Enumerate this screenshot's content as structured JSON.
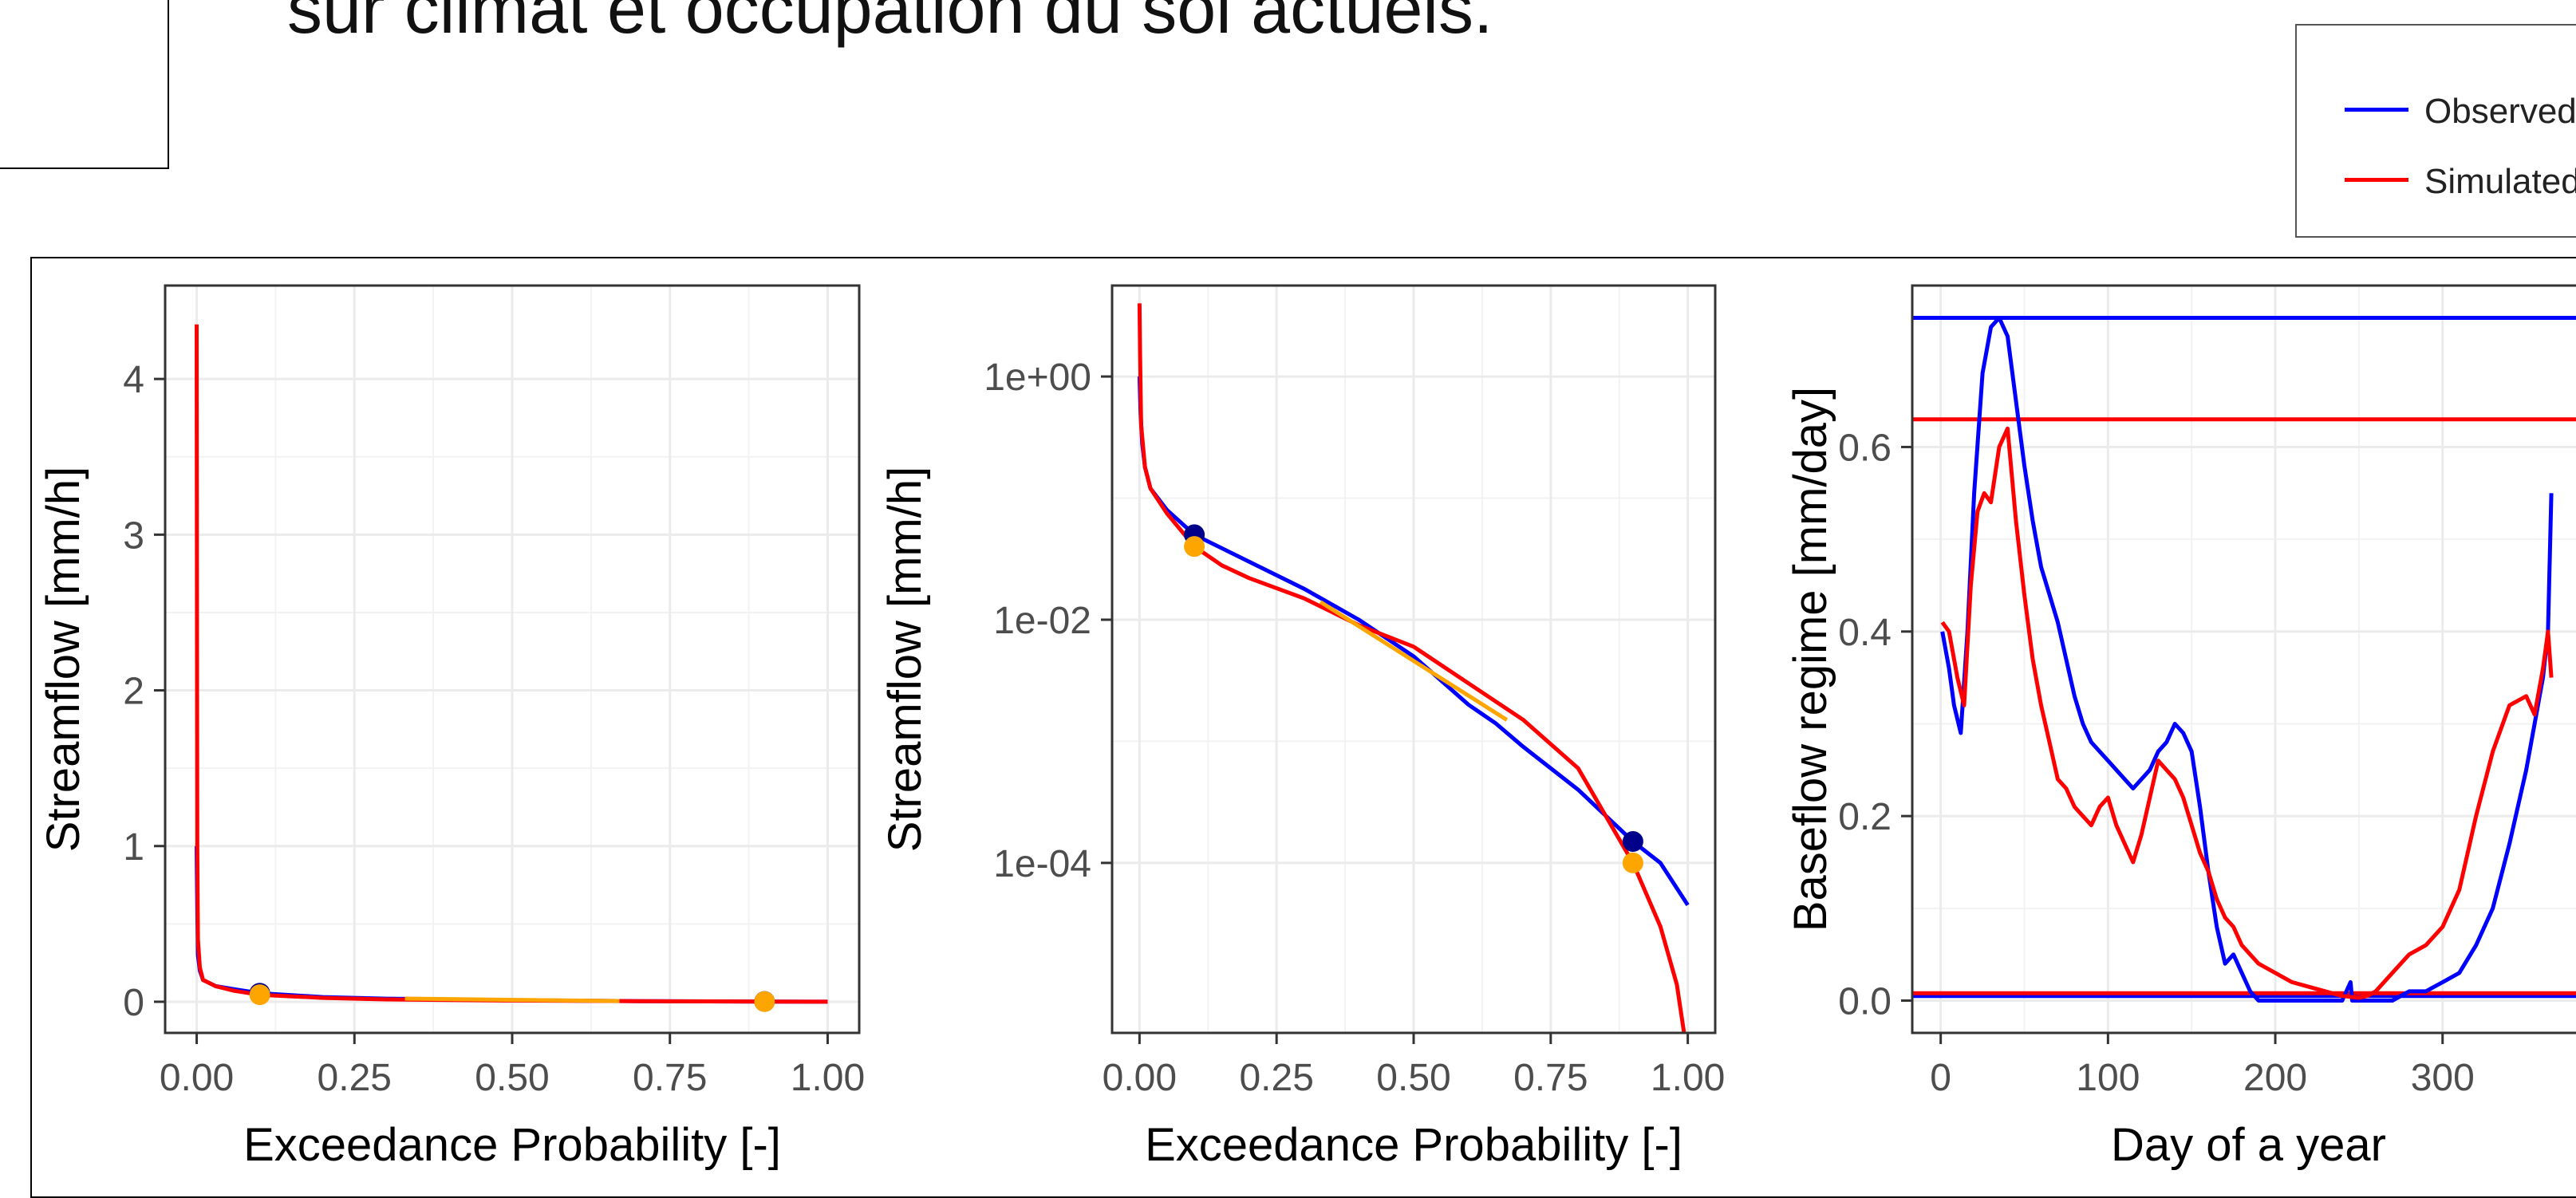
{
  "slide": {
    "title": "sur climat et occupation du sol actuels."
  },
  "legend": {
    "items": [
      {
        "label": "Observed",
        "color": "#0000FF"
      },
      {
        "label": "Simulated",
        "color": "#FF0000"
      }
    ]
  },
  "colors": {
    "observed": "#0000FF",
    "simulated": "#FF0000",
    "observed_points": "#00008B",
    "segment": "#FFA500",
    "panel_border": "#333333",
    "grid": "#EBEBEB"
  },
  "chart_data": [
    {
      "type": "line",
      "scale": "linear",
      "xlabel": "Exceedance Probability [-]",
      "ylabel": "Streamflow [mm/h]",
      "xlim": [
        -0.05,
        1.05
      ],
      "ylim": [
        -0.2,
        4.6
      ],
      "xticks": [
        0,
        0.25,
        0.5,
        0.75,
        1.0
      ],
      "xtick_labels": [
        "0.00",
        "0.25",
        "0.50",
        "0.75",
        "1.00"
      ],
      "yticks": [
        0,
        1,
        2,
        3,
        4
      ],
      "ytick_labels": [
        "0",
        "1",
        "2",
        "3",
        "4"
      ],
      "grid": true,
      "series": [
        {
          "name": "Observed",
          "color": "#0000FF",
          "x": [
            0.0,
            0.001,
            0.002,
            0.005,
            0.01,
            0.03,
            0.06,
            0.1,
            0.2,
            0.3,
            0.5,
            0.7,
            0.9,
            1.0
          ],
          "y": [
            1.0,
            0.6,
            0.3,
            0.2,
            0.14,
            0.1,
            0.08,
            0.055,
            0.03,
            0.02,
            0.01,
            0.004,
            0.0015,
            0.0005
          ]
        },
        {
          "name": "Simulated",
          "color": "#FF0000",
          "x": [
            0.0,
            0.0005,
            0.001,
            0.002,
            0.005,
            0.01,
            0.03,
            0.06,
            0.1,
            0.2,
            0.3,
            0.5,
            0.7,
            0.9,
            1.0
          ],
          "y": [
            4.35,
            2.5,
            1.0,
            0.4,
            0.22,
            0.14,
            0.1,
            0.07,
            0.045,
            0.025,
            0.015,
            0.008,
            0.004,
            0.001,
            0.0001
          ]
        }
      ],
      "points": [
        {
          "x": 0.1,
          "y": 0.055,
          "color": "#00008B"
        },
        {
          "x": 0.9,
          "y": 0.0015,
          "color": "#00008B"
        },
        {
          "x": 0.1,
          "y": 0.045,
          "color": "#FFA500"
        },
        {
          "x": 0.9,
          "y": 0.001,
          "color": "#FFA500"
        }
      ],
      "segment": {
        "x": [
          0.33,
          0.67
        ],
        "y": [
          0.02,
          0.005
        ],
        "color": "#FFA500"
      }
    },
    {
      "type": "line",
      "scale": "log",
      "xlabel": "Exceedance Probability [-]",
      "ylabel": "Streamflow [mm/h]",
      "xlim": [
        -0.05,
        1.05
      ],
      "ylim": [
        4e-06,
        5.6
      ],
      "xticks": [
        0,
        0.25,
        0.5,
        0.75,
        1.0
      ],
      "xtick_labels": [
        "0.00",
        "0.25",
        "0.50",
        "0.75",
        "1.00"
      ],
      "yticks": [
        1,
        0.01,
        0.0001
      ],
      "ytick_labels": [
        "1e+00",
        "1e-02",
        "1e-04"
      ],
      "grid": true,
      "series": [
        {
          "name": "Observed",
          "color": "#0000FF",
          "x": [
            0.0,
            0.002,
            0.005,
            0.01,
            0.02,
            0.05,
            0.1,
            0.2,
            0.3,
            0.4,
            0.5,
            0.6,
            0.65,
            0.7,
            0.8,
            0.9,
            0.95,
            1.0
          ],
          "y": [
            1.0,
            0.5,
            0.28,
            0.18,
            0.12,
            0.08,
            0.05,
            0.03,
            0.018,
            0.01,
            0.005,
            0.002,
            0.0014,
            0.0009,
            0.0004,
            0.00015,
            0.0001,
            4.5e-05
          ]
        },
        {
          "name": "Simulated",
          "color": "#FF0000",
          "x": [
            0.0,
            0.001,
            0.003,
            0.01,
            0.02,
            0.05,
            0.1,
            0.15,
            0.2,
            0.3,
            0.4,
            0.5,
            0.6,
            0.7,
            0.8,
            0.9,
            0.95,
            0.98,
            1.0
          ],
          "y": [
            4.0,
            1.5,
            0.4,
            0.18,
            0.12,
            0.075,
            0.04,
            0.028,
            0.022,
            0.015,
            0.009,
            0.006,
            0.003,
            0.0015,
            0.0006,
            0.0001,
            3e-05,
            1e-05,
            2.5e-06
          ]
        }
      ],
      "points": [
        {
          "x": 0.1,
          "y": 0.05,
          "color": "#00008B"
        },
        {
          "x": 0.9,
          "y": 0.00015,
          "color": "#00008B"
        },
        {
          "x": 0.1,
          "y": 0.04,
          "color": "#FFA500"
        },
        {
          "x": 0.9,
          "y": 0.0001,
          "color": "#FFA500"
        }
      ],
      "segment": {
        "x": [
          0.33,
          0.67
        ],
        "y": [
          0.014,
          0.0015
        ],
        "color": "#FFA500"
      }
    },
    {
      "type": "line",
      "scale": "linear",
      "xlabel": "Day of a year",
      "ylabel": "Baseflow regime [mm/day]",
      "xlim": [
        -17,
        385
      ],
      "ylim": [
        -0.035,
        0.775
      ],
      "xticks": [
        0,
        100,
        200,
        300
      ],
      "xtick_labels": [
        "0",
        "100",
        "200",
        "300"
      ],
      "yticks": [
        0,
        0.2,
        0.4,
        0.6
      ],
      "ytick_labels": [
        "0.0",
        "0.2",
        "0.4",
        "0.6"
      ],
      "grid": true,
      "hlines": [
        {
          "y": 0.74,
          "color": "#0000FF"
        },
        {
          "y": 0.63,
          "color": "#FF0000"
        },
        {
          "y": 0.005,
          "color": "#0000FF"
        },
        {
          "y": 0.008,
          "color": "#FF0000"
        }
      ],
      "series": [
        {
          "name": "Observed",
          "color": "#0000FF",
          "x": [
            1,
            5,
            8,
            12,
            16,
            20,
            25,
            30,
            35,
            40,
            45,
            50,
            55,
            60,
            65,
            70,
            75,
            80,
            85,
            90,
            95,
            100,
            105,
            110,
            115,
            120,
            125,
            130,
            135,
            140,
            145,
            150,
            155,
            160,
            165,
            170,
            175,
            180,
            185,
            190,
            200,
            210,
            220,
            230,
            240,
            245,
            246,
            250,
            260,
            270,
            280,
            290,
            300,
            310,
            320,
            330,
            340,
            350,
            355,
            360,
            363,
            365
          ],
          "y": [
            0.4,
            0.36,
            0.32,
            0.29,
            0.4,
            0.55,
            0.68,
            0.73,
            0.74,
            0.72,
            0.65,
            0.58,
            0.52,
            0.47,
            0.44,
            0.41,
            0.37,
            0.33,
            0.3,
            0.28,
            0.27,
            0.26,
            0.25,
            0.24,
            0.23,
            0.24,
            0.25,
            0.27,
            0.28,
            0.3,
            0.29,
            0.27,
            0.21,
            0.14,
            0.08,
            0.04,
            0.05,
            0.03,
            0.01,
            0.0,
            0.0,
            0.0,
            0.0,
            0.0,
            0.0,
            0.02,
            0.0,
            0.0,
            0.0,
            0.0,
            0.01,
            0.01,
            0.02,
            0.03,
            0.06,
            0.1,
            0.17,
            0.25,
            0.3,
            0.35,
            0.4,
            0.55
          ]
        },
        {
          "name": "Simulated",
          "color": "#FF0000",
          "x": [
            1,
            5,
            10,
            14,
            18,
            22,
            26,
            30,
            35,
            40,
            45,
            50,
            55,
            60,
            65,
            70,
            75,
            80,
            85,
            90,
            95,
            100,
            105,
            110,
            115,
            120,
            125,
            130,
            135,
            140,
            145,
            150,
            155,
            160,
            165,
            170,
            175,
            180,
            185,
            190,
            200,
            210,
            220,
            230,
            240,
            250,
            255,
            260,
            270,
            280,
            290,
            300,
            310,
            320,
            330,
            340,
            350,
            355,
            360,
            363,
            365
          ],
          "y": [
            0.41,
            0.4,
            0.35,
            0.32,
            0.45,
            0.53,
            0.55,
            0.54,
            0.6,
            0.62,
            0.52,
            0.44,
            0.37,
            0.32,
            0.28,
            0.24,
            0.23,
            0.21,
            0.2,
            0.19,
            0.21,
            0.22,
            0.19,
            0.17,
            0.15,
            0.18,
            0.22,
            0.26,
            0.25,
            0.24,
            0.22,
            0.19,
            0.16,
            0.14,
            0.11,
            0.09,
            0.08,
            0.06,
            0.05,
            0.04,
            0.03,
            0.02,
            0.015,
            0.01,
            0.005,
            0.003,
            0.005,
            0.01,
            0.03,
            0.05,
            0.06,
            0.08,
            0.12,
            0.2,
            0.27,
            0.32,
            0.33,
            0.31,
            0.36,
            0.4,
            0.35
          ]
        }
      ]
    }
  ]
}
